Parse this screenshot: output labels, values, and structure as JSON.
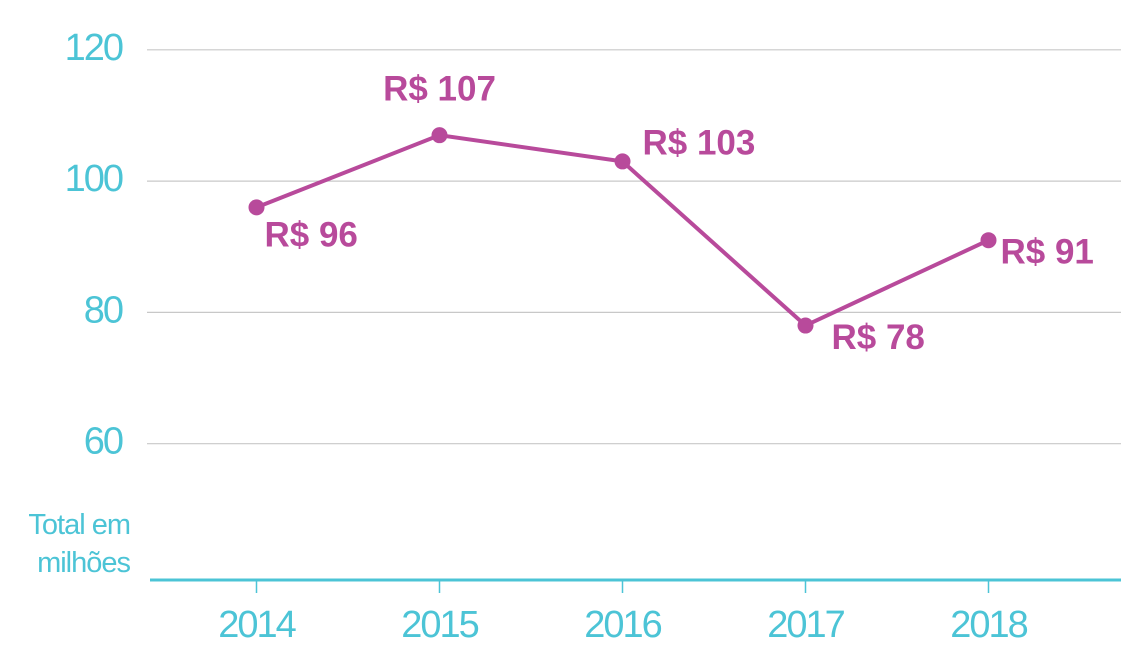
{
  "chart_data": {
    "type": "line",
    "ylabel": "Total em milhões",
    "categories": [
      "2014",
      "2015",
      "2016",
      "2017",
      "2018"
    ],
    "series": [
      {
        "name": "Total",
        "color": "#b84a9b",
        "values": [
          96,
          107,
          103,
          78,
          91
        ],
        "value_labels": [
          "R$ 96",
          "R$ 107",
          "R$ 103",
          "R$ 78",
          "R$ 91"
        ]
      }
    ],
    "ylim": [
      40,
      125
    ],
    "yticks": [
      60,
      80,
      100,
      120
    ],
    "grid": true,
    "axis_color": "#4cc4d6"
  }
}
